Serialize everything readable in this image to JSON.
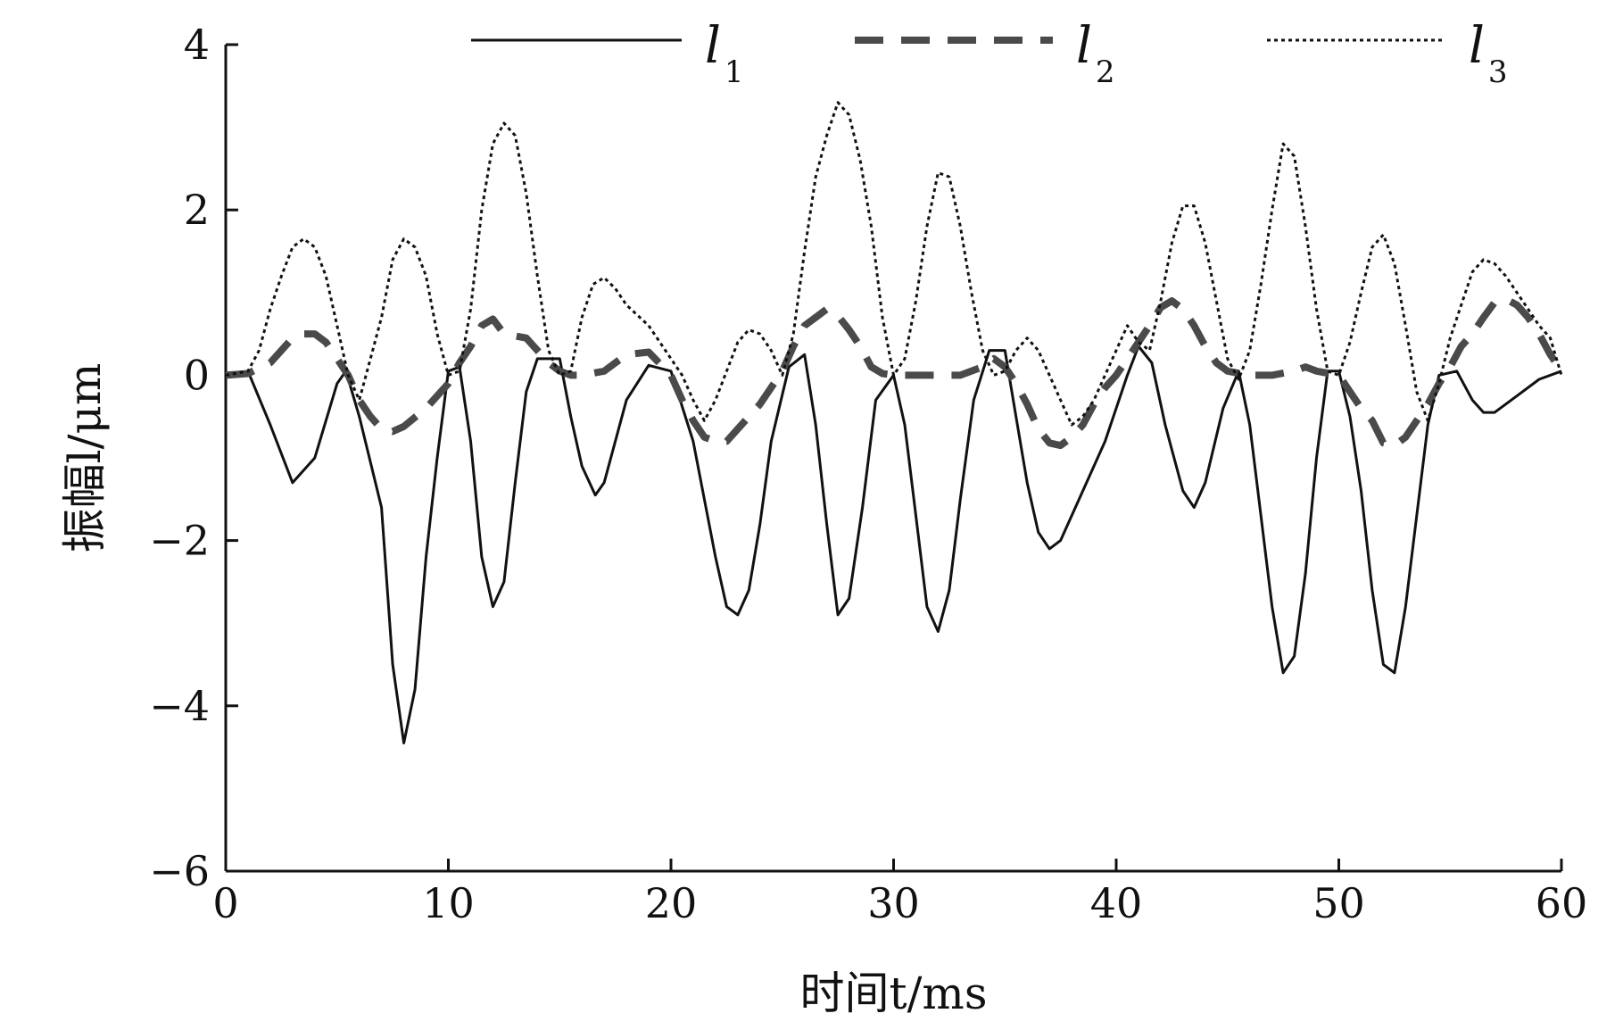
{
  "chart_data": {
    "type": "line",
    "xlabel": "时间t/ms",
    "ylabel": "振幅l/μm",
    "xlim": [
      0,
      60
    ],
    "ylim": [
      -6,
      4
    ],
    "x_ticks": [
      0,
      10,
      20,
      30,
      40,
      50,
      60
    ],
    "x_tick_labels": [
      "0",
      "10",
      "20",
      "30",
      "40",
      "50",
      "60"
    ],
    "y_ticks": [
      -6,
      -4,
      -2,
      0,
      2,
      4
    ],
    "y_tick_labels": [
      "−6",
      "−4",
      "−2",
      "0",
      "2",
      "4"
    ],
    "grid": false,
    "legend_position": "top",
    "series": [
      {
        "name": "l1",
        "name_main": "l",
        "name_sub": "1",
        "style": "solid",
        "color": "#111111",
        "points": [
          [
            0,
            0
          ],
          [
            1,
            0.05
          ],
          [
            2,
            -0.6
          ],
          [
            3,
            -1.3
          ],
          [
            4,
            -1.0
          ],
          [
            5,
            -0.1
          ],
          [
            5.4,
            0.05
          ],
          [
            6,
            -0.5
          ],
          [
            7,
            -1.6
          ],
          [
            7.5,
            -3.5
          ],
          [
            8,
            -4.45
          ],
          [
            8.5,
            -3.8
          ],
          [
            9,
            -2.2
          ],
          [
            9.5,
            -1.0
          ],
          [
            10,
            0.05
          ],
          [
            10.5,
            0.1
          ],
          [
            11,
            -0.8
          ],
          [
            11.5,
            -2.2
          ],
          [
            12,
            -2.8
          ],
          [
            12.5,
            -2.5
          ],
          [
            13,
            -1.3
          ],
          [
            13.5,
            -0.2
          ],
          [
            14,
            0.2
          ],
          [
            15,
            0.2
          ],
          [
            15.5,
            -0.5
          ],
          [
            16,
            -1.1
          ],
          [
            16.6,
            -1.45
          ],
          [
            17,
            -1.3
          ],
          [
            18,
            -0.3
          ],
          [
            19,
            0.12
          ],
          [
            20,
            0.05
          ],
          [
            21,
            -0.8
          ],
          [
            22,
            -2.2
          ],
          [
            22.5,
            -2.8
          ],
          [
            23,
            -2.9
          ],
          [
            23.5,
            -2.6
          ],
          [
            24,
            -1.8
          ],
          [
            24.5,
            -0.8
          ],
          [
            25.3,
            0.1
          ],
          [
            26,
            0.25
          ],
          [
            26.5,
            -0.6
          ],
          [
            27,
            -1.8
          ],
          [
            27.5,
            -2.9
          ],
          [
            28,
            -2.7
          ],
          [
            28.6,
            -1.6
          ],
          [
            29.2,
            -0.3
          ],
          [
            30,
            0.0
          ],
          [
            30.5,
            -0.6
          ],
          [
            31,
            -1.7
          ],
          [
            31.5,
            -2.8
          ],
          [
            32,
            -3.1
          ],
          [
            32.5,
            -2.6
          ],
          [
            33,
            -1.5
          ],
          [
            33.6,
            -0.3
          ],
          [
            34.3,
            0.3
          ],
          [
            35,
            0.3
          ],
          [
            35.5,
            -0.5
          ],
          [
            36,
            -1.3
          ],
          [
            36.5,
            -1.9
          ],
          [
            37,
            -2.1
          ],
          [
            37.5,
            -2.0
          ],
          [
            38.5,
            -1.4
          ],
          [
            39.5,
            -0.8
          ],
          [
            40.5,
            0.0
          ],
          [
            41,
            0.35
          ],
          [
            41.6,
            0.15
          ],
          [
            42.2,
            -0.6
          ],
          [
            43,
            -1.4
          ],
          [
            43.5,
            -1.6
          ],
          [
            44,
            -1.3
          ],
          [
            44.8,
            -0.4
          ],
          [
            45.5,
            0.05
          ],
          [
            46,
            -0.6
          ],
          [
            46.5,
            -1.7
          ],
          [
            47,
            -2.8
          ],
          [
            47.5,
            -3.6
          ],
          [
            48,
            -3.4
          ],
          [
            48.5,
            -2.4
          ],
          [
            49,
            -1.0
          ],
          [
            49.5,
            0.05
          ],
          [
            50,
            0.05
          ],
          [
            50.5,
            -0.5
          ],
          [
            51,
            -1.4
          ],
          [
            51.5,
            -2.6
          ],
          [
            52,
            -3.5
          ],
          [
            52.5,
            -3.6
          ],
          [
            53,
            -2.8
          ],
          [
            53.5,
            -1.7
          ],
          [
            54,
            -0.6
          ],
          [
            54.5,
            0.0
          ],
          [
            55.3,
            0.05
          ],
          [
            56,
            -0.3
          ],
          [
            56.5,
            -0.45
          ],
          [
            57,
            -0.45
          ],
          [
            58,
            -0.25
          ],
          [
            59,
            -0.05
          ],
          [
            60,
            0.05
          ]
        ]
      },
      {
        "name": "l2",
        "name_main": "l",
        "name_sub": "2",
        "style": "dashed",
        "color": "#4a4a4a",
        "points": [
          [
            0,
            0
          ],
          [
            1,
            0.02
          ],
          [
            2,
            0.15
          ],
          [
            2.5,
            0.3
          ],
          [
            3,
            0.45
          ],
          [
            3.5,
            0.5
          ],
          [
            4,
            0.5
          ],
          [
            4.5,
            0.4
          ],
          [
            5,
            0.2
          ],
          [
            5.5,
            0.0
          ],
          [
            6,
            -0.3
          ],
          [
            6.5,
            -0.5
          ],
          [
            7,
            -0.65
          ],
          [
            7.5,
            -0.68
          ],
          [
            8,
            -0.62
          ],
          [
            9,
            -0.4
          ],
          [
            10,
            -0.1
          ],
          [
            10.5,
            0.15
          ],
          [
            11,
            0.35
          ],
          [
            11.5,
            0.6
          ],
          [
            12,
            0.68
          ],
          [
            12.5,
            0.5
          ],
          [
            13.5,
            0.45
          ],
          [
            14,
            0.3
          ],
          [
            14.5,
            0.15
          ],
          [
            15,
            0.05
          ],
          [
            15.5,
            0.0
          ],
          [
            16,
            0.0
          ],
          [
            17,
            0.05
          ],
          [
            18,
            0.25
          ],
          [
            19,
            0.28
          ],
          [
            20,
            0.0
          ],
          [
            20.5,
            -0.3
          ],
          [
            21,
            -0.55
          ],
          [
            21.5,
            -0.75
          ],
          [
            22,
            -0.8
          ],
          [
            22.5,
            -0.8
          ],
          [
            23,
            -0.65
          ],
          [
            24,
            -0.35
          ],
          [
            25,
            0.05
          ],
          [
            25.5,
            0.35
          ],
          [
            26,
            0.6
          ],
          [
            26.5,
            0.7
          ],
          [
            27,
            0.8
          ],
          [
            27.5,
            0.72
          ],
          [
            28,
            0.55
          ],
          [
            28.5,
            0.35
          ],
          [
            29,
            0.1
          ],
          [
            29.5,
            0.02
          ],
          [
            30,
            0.0
          ],
          [
            31,
            0.0
          ],
          [
            32,
            0.0
          ],
          [
            33,
            0.0
          ],
          [
            34,
            0.1
          ],
          [
            34.5,
            0.2
          ],
          [
            35,
            0.1
          ],
          [
            35.5,
            -0.1
          ],
          [
            36,
            -0.35
          ],
          [
            36.5,
            -0.65
          ],
          [
            37,
            -0.82
          ],
          [
            37.5,
            -0.85
          ],
          [
            38,
            -0.75
          ],
          [
            38.5,
            -0.6
          ],
          [
            39,
            -0.35
          ],
          [
            39.5,
            -0.15
          ],
          [
            40,
            0.0
          ],
          [
            40.5,
            0.2
          ],
          [
            41,
            0.4
          ],
          [
            41.5,
            0.6
          ],
          [
            42,
            0.82
          ],
          [
            42.5,
            0.9
          ],
          [
            43,
            0.8
          ],
          [
            43.5,
            0.6
          ],
          [
            44,
            0.35
          ],
          [
            44.5,
            0.15
          ],
          [
            45,
            0.05
          ],
          [
            46,
            0.0
          ],
          [
            47,
            0.0
          ],
          [
            48,
            0.05
          ],
          [
            48.5,
            0.1
          ],
          [
            49,
            0.05
          ],
          [
            50,
            0.0
          ],
          [
            50.5,
            -0.2
          ],
          [
            51,
            -0.4
          ],
          [
            51.5,
            -0.55
          ],
          [
            52,
            -0.82
          ],
          [
            52.5,
            -0.85
          ],
          [
            53,
            -0.75
          ],
          [
            53.5,
            -0.55
          ],
          [
            54,
            -0.35
          ],
          [
            54.5,
            -0.1
          ],
          [
            55,
            0.1
          ],
          [
            55.5,
            0.35
          ],
          [
            56,
            0.5
          ],
          [
            56.5,
            0.7
          ],
          [
            57,
            0.88
          ],
          [
            57.5,
            0.92
          ],
          [
            58,
            0.85
          ],
          [
            58.5,
            0.7
          ],
          [
            59,
            0.5
          ],
          [
            59.5,
            0.25
          ],
          [
            60,
            0.05
          ]
        ]
      },
      {
        "name": "l3",
        "name_main": "l",
        "name_sub": "3",
        "style": "dotted",
        "color": "#111111",
        "points": [
          [
            0,
            0
          ],
          [
            1,
            0.05
          ],
          [
            1.5,
            0.3
          ],
          [
            2,
            0.8
          ],
          [
            2.5,
            1.2
          ],
          [
            3,
            1.55
          ],
          [
            3.5,
            1.65
          ],
          [
            4,
            1.55
          ],
          [
            4.5,
            1.2
          ],
          [
            5,
            0.6
          ],
          [
            5.5,
            0.0
          ],
          [
            6,
            -0.3
          ],
          [
            6.5,
            0.2
          ],
          [
            7,
            0.7
          ],
          [
            7.5,
            1.4
          ],
          [
            8,
            1.65
          ],
          [
            8.5,
            1.55
          ],
          [
            9,
            1.2
          ],
          [
            9.5,
            0.5
          ],
          [
            10,
            0.0
          ],
          [
            10.5,
            0.05
          ],
          [
            11,
            0.8
          ],
          [
            11.5,
            2.0
          ],
          [
            12,
            2.8
          ],
          [
            12.5,
            3.05
          ],
          [
            13,
            2.9
          ],
          [
            13.5,
            2.2
          ],
          [
            14,
            1.2
          ],
          [
            14.5,
            0.3
          ],
          [
            15,
            0.0
          ],
          [
            15.5,
            0.05
          ],
          [
            16,
            0.7
          ],
          [
            16.5,
            1.1
          ],
          [
            17,
            1.18
          ],
          [
            17.5,
            1.05
          ],
          [
            18,
            0.85
          ],
          [
            19,
            0.6
          ],
          [
            20,
            0.2
          ],
          [
            20.5,
            0.0
          ],
          [
            21,
            -0.3
          ],
          [
            21.5,
            -0.55
          ],
          [
            22,
            -0.3
          ],
          [
            23,
            0.4
          ],
          [
            23.5,
            0.55
          ],
          [
            24,
            0.5
          ],
          [
            24.5,
            0.3
          ],
          [
            25,
            0.0
          ],
          [
            25.5,
            0.5
          ],
          [
            26,
            1.5
          ],
          [
            26.5,
            2.4
          ],
          [
            27,
            2.9
          ],
          [
            27.5,
            3.3
          ],
          [
            28,
            3.15
          ],
          [
            28.5,
            2.6
          ],
          [
            29,
            1.8
          ],
          [
            29.5,
            0.7
          ],
          [
            30,
            0.0
          ],
          [
            30.5,
            0.2
          ],
          [
            31,
            0.9
          ],
          [
            31.5,
            1.8
          ],
          [
            32,
            2.45
          ],
          [
            32.5,
            2.4
          ],
          [
            33,
            1.8
          ],
          [
            33.5,
            1.0
          ],
          [
            34,
            0.3
          ],
          [
            34.5,
            0.0
          ],
          [
            35,
            0.05
          ],
          [
            35.5,
            0.3
          ],
          [
            36,
            0.45
          ],
          [
            36.5,
            0.3
          ],
          [
            37,
            0.0
          ],
          [
            37.5,
            -0.3
          ],
          [
            38,
            -0.6
          ],
          [
            38.5,
            -0.5
          ],
          [
            39,
            -0.3
          ],
          [
            39.5,
            0.0
          ],
          [
            40,
            0.3
          ],
          [
            40.5,
            0.6
          ],
          [
            41,
            0.4
          ],
          [
            41.5,
            0.3
          ],
          [
            42,
            0.9
          ],
          [
            42.5,
            1.6
          ],
          [
            43,
            2.05
          ],
          [
            43.5,
            2.05
          ],
          [
            44,
            1.6
          ],
          [
            44.5,
            0.9
          ],
          [
            45,
            0.2
          ],
          [
            45.5,
            -0.05
          ],
          [
            46,
            0.3
          ],
          [
            46.5,
            1.1
          ],
          [
            47,
            2.0
          ],
          [
            47.5,
            2.8
          ],
          [
            48,
            2.65
          ],
          [
            48.5,
            1.8
          ],
          [
            49,
            0.8
          ],
          [
            49.5,
            0.05
          ],
          [
            50,
            0.0
          ],
          [
            50.5,
            0.4
          ],
          [
            51,
            1.0
          ],
          [
            51.5,
            1.55
          ],
          [
            52,
            1.7
          ],
          [
            52.5,
            1.35
          ],
          [
            53,
            0.6
          ],
          [
            53.5,
            -0.2
          ],
          [
            54,
            -0.55
          ],
          [
            54.5,
            -0.1
          ],
          [
            55,
            0.45
          ],
          [
            55.5,
            0.85
          ],
          [
            56,
            1.25
          ],
          [
            56.5,
            1.4
          ],
          [
            57,
            1.35
          ],
          [
            57.5,
            1.2
          ],
          [
            58,
            1.0
          ],
          [
            58.5,
            0.8
          ],
          [
            59,
            0.6
          ],
          [
            59.5,
            0.45
          ],
          [
            60,
            0.0
          ]
        ]
      }
    ]
  }
}
